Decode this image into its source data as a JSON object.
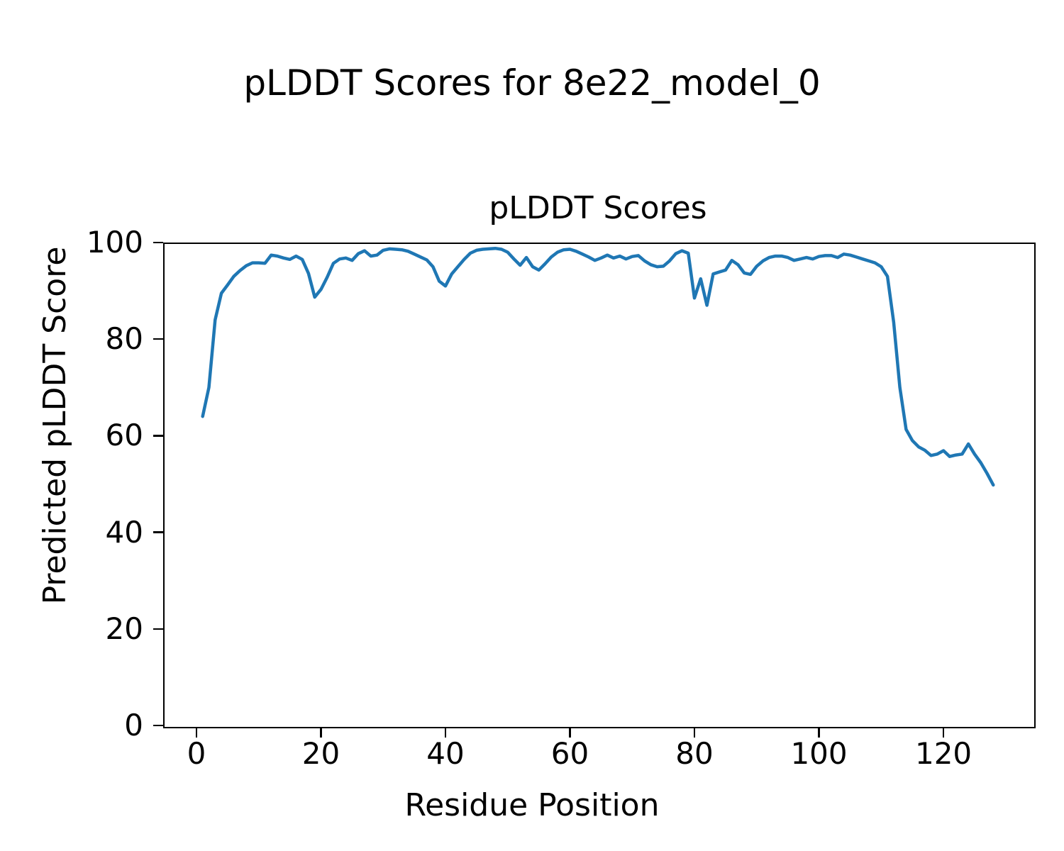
{
  "figure": {
    "suptitle": "pLDDT Scores for 8e22_model_0",
    "background_color": "#ffffff",
    "text_color": "#000000"
  },
  "chart_data": {
    "type": "line",
    "title": "pLDDT Scores",
    "xlabel": "Residue Position",
    "ylabel": "Predicted pLDDT Score",
    "grid": false,
    "legend": "none",
    "line_color": "#1f77b4",
    "xlim": [
      -5.35,
      134.35
    ],
    "ylim": [
      0,
      100
    ],
    "x_ticks": [
      0,
      20,
      40,
      60,
      80,
      100,
      120
    ],
    "y_ticks": [
      0,
      20,
      40,
      60,
      80,
      100
    ],
    "series": [
      {
        "name": "pLDDT",
        "x": [
          1,
          2,
          3,
          4,
          5,
          6,
          7,
          8,
          9,
          10,
          11,
          12,
          13,
          14,
          15,
          16,
          17,
          18,
          19,
          20,
          21,
          22,
          23,
          24,
          25,
          26,
          27,
          28,
          29,
          30,
          31,
          32,
          33,
          34,
          35,
          36,
          37,
          38,
          39,
          40,
          41,
          42,
          43,
          44,
          45,
          46,
          47,
          48,
          49,
          50,
          51,
          52,
          53,
          54,
          55,
          56,
          57,
          58,
          59,
          60,
          61,
          62,
          63,
          64,
          65,
          66,
          67,
          68,
          69,
          70,
          71,
          72,
          73,
          74,
          75,
          76,
          77,
          78,
          79,
          80,
          81,
          82,
          83,
          84,
          85,
          86,
          87,
          88,
          89,
          90,
          91,
          92,
          93,
          94,
          95,
          96,
          97,
          98,
          99,
          100,
          101,
          102,
          103,
          104,
          105,
          106,
          107,
          108,
          109,
          110,
          111,
          112,
          113,
          114,
          115,
          116,
          117,
          118,
          119,
          120,
          121,
          122,
          123,
          124,
          125,
          126,
          127,
          128
        ],
        "values": [
          64.0,
          70.0,
          84.0,
          89.5,
          91.2,
          93.0,
          94.2,
          95.2,
          95.8,
          95.8,
          95.7,
          97.4,
          97.2,
          96.8,
          96.5,
          97.2,
          96.5,
          93.6,
          88.7,
          90.3,
          92.8,
          95.7,
          96.6,
          96.8,
          96.3,
          97.7,
          98.3,
          97.2,
          97.4,
          98.4,
          98.7,
          98.6,
          98.5,
          98.2,
          97.6,
          97.0,
          96.4,
          95.0,
          92.0,
          91.0,
          93.5,
          95.0,
          96.5,
          97.8,
          98.4,
          98.6,
          98.7,
          98.8,
          98.6,
          98.0,
          96.6,
          95.3,
          96.9,
          95.0,
          94.3,
          95.6,
          97.0,
          98.0,
          98.5,
          98.6,
          98.2,
          97.6,
          97.0,
          96.3,
          96.8,
          97.4,
          96.8,
          97.2,
          96.6,
          97.1,
          97.3,
          96.2,
          95.4,
          95.0,
          95.1,
          96.2,
          97.7,
          98.3,
          97.8,
          88.5,
          92.5,
          87.0,
          93.5,
          93.9,
          94.3,
          96.3,
          95.4,
          93.7,
          93.4,
          95.1,
          96.2,
          96.9,
          97.2,
          97.2,
          96.9,
          96.3,
          96.6,
          96.9,
          96.6,
          97.1,
          97.3,
          97.3,
          96.9,
          97.6,
          97.4,
          97.0,
          96.6,
          96.2,
          95.8,
          95.0,
          93.0,
          83.5,
          70.0,
          61.3,
          59.0,
          57.7,
          57.0,
          55.9,
          56.2,
          56.9,
          55.7,
          56.0,
          56.2,
          58.3,
          56.2,
          54.4,
          52.2,
          49.8
        ]
      }
    ]
  }
}
